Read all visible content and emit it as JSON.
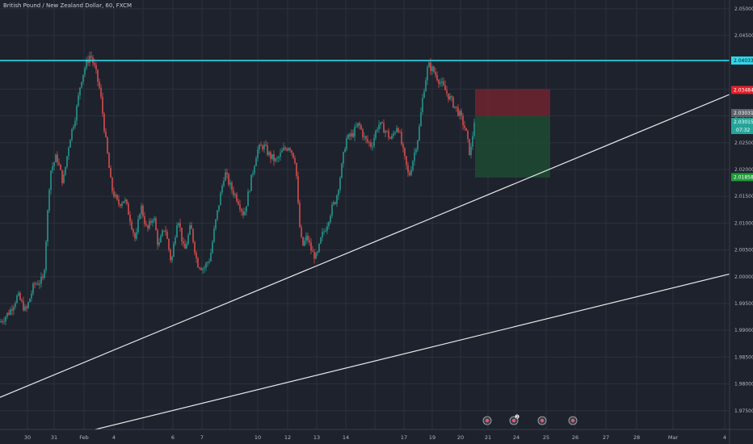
{
  "title": "British Pound / New Zealand Dollar, 60, FXCM",
  "colors": {
    "background": "#1e222d",
    "grid": "#2c303c",
    "up": "#26a69a",
    "down": "#ef5350",
    "resistance": "#30d7e8",
    "trendline": "#e8e8e8",
    "stop_zone": "#7a2430",
    "target_zone": "#1d4a33",
    "tag_resistance": "#30d7e8",
    "tag_stop": "#e0202a",
    "tag_last": "#5e6269",
    "tag_entry": "#26a69a",
    "tag_target": "#1e9c3a"
  },
  "chart_data": {
    "type": "candlestick",
    "y_axis": {
      "range": [
        1.9715,
        2.0515
      ],
      "ticks": [
        "2.05000",
        "2.04500",
        "2.04000",
        "2.03500",
        "2.03000",
        "2.02500",
        "2.02000",
        "2.01500",
        "2.01000",
        "2.00500",
        "2.00000",
        "1.99500",
        "1.99000",
        "1.98500",
        "1.98000",
        "1.97500"
      ]
    },
    "x_axis": {
      "ticks": [
        "30",
        "31",
        "Feb",
        "4",
        "6",
        "7",
        "10",
        "12",
        "13",
        "14",
        "17",
        "19",
        "20",
        "21",
        "24",
        "25",
        "26",
        "27",
        "28",
        "Mar",
        "4"
      ]
    },
    "path_anchors": [
      [
        0,
        1.9915
      ],
      [
        12,
        1.9935
      ],
      [
        22,
        1.9965
      ],
      [
        32,
        1.9935
      ],
      [
        42,
        1.9985
      ],
      [
        54,
        1.9995
      ],
      [
        62,
        2.0195
      ],
      [
        70,
        2.0225
      ],
      [
        78,
        2.0175
      ],
      [
        86,
        2.0255
      ],
      [
        94,
        2.0305
      ],
      [
        100,
        2.0365
      ],
      [
        106,
        2.0395
      ],
      [
        112,
        2.0415
      ],
      [
        118,
        2.0385
      ],
      [
        124,
        2.0345
      ],
      [
        130,
        2.0265
      ],
      [
        138,
        2.0165
      ],
      [
        146,
        2.0135
      ],
      [
        154,
        2.0145
      ],
      [
        160,
        2.0115
      ],
      [
        168,
        2.0065
      ],
      [
        174,
        2.0135
      ],
      [
        182,
        2.0085
      ],
      [
        190,
        2.0115
      ],
      [
        196,
        2.0055
      ],
      [
        204,
        2.0095
      ],
      [
        212,
        2.0025
      ],
      [
        220,
        2.0115
      ],
      [
        228,
        2.0045
      ],
      [
        236,
        2.0095
      ],
      [
        244,
        2.0025
      ],
      [
        252,
        2.0015
      ],
      [
        260,
        2.0035
      ],
      [
        266,
        2.0095
      ],
      [
        272,
        2.0145
      ],
      [
        278,
        2.0195
      ],
      [
        286,
        2.0165
      ],
      [
        294,
        2.0145
      ],
      [
        302,
        2.0115
      ],
      [
        310,
        2.0175
      ],
      [
        318,
        2.0235
      ],
      [
        326,
        2.0245
      ],
      [
        334,
        2.0225
      ],
      [
        342,
        2.0215
      ],
      [
        350,
        2.0235
      ],
      [
        358,
        2.0245
      ],
      [
        366,
        2.0215
      ],
      [
        370,
        2.0105
      ],
      [
        374,
        2.0055
      ],
      [
        380,
        2.0075
      ],
      [
        386,
        2.0045
      ],
      [
        392,
        2.0035
      ],
      [
        398,
        2.0075
      ],
      [
        404,
        2.0095
      ],
      [
        410,
        2.0125
      ],
      [
        416,
        2.0145
      ],
      [
        422,
        2.0195
      ],
      [
        428,
        2.0255
      ],
      [
        436,
        2.0265
      ],
      [
        444,
        2.0285
      ],
      [
        452,
        2.0255
      ],
      [
        460,
        2.0245
      ],
      [
        468,
        2.0285
      ],
      [
        476,
        2.0275
      ],
      [
        484,
        2.0255
      ],
      [
        492,
        2.0285
      ],
      [
        500,
        2.0225
      ],
      [
        506,
        2.0185
      ],
      [
        512,
        2.0225
      ],
      [
        518,
        2.0265
      ],
      [
        524,
        2.0345
      ],
      [
        530,
        2.0395
      ],
      [
        536,
        2.0385
      ],
      [
        544,
        2.0365
      ],
      [
        552,
        2.0345
      ],
      [
        560,
        2.0325
      ],
      [
        568,
        2.0305
      ],
      [
        576,
        2.0275
      ],
      [
        582,
        2.0225
      ],
      [
        588,
        2.0305
      ]
    ],
    "resistance_level": "2.04033",
    "stop_level": "2.03484",
    "last_price": "2.03031",
    "entry_price": "2.03015",
    "countdown": "07:32",
    "target_level": "2.01858",
    "trendlines": [
      {
        "from": [
          "29 Jan",
          1.9775
        ],
        "to": [
          "4 Mar",
          2.034
        ]
      },
      {
        "from": [
          "Feb",
          1.9715
        ],
        "to": [
          "4 Mar",
          2.0005
        ]
      }
    ],
    "trade": {
      "entry": 2.03,
      "stop": 2.035,
      "target": 2.0185
    },
    "event_markers": [
      {
        "day": "21",
        "label": ""
      },
      {
        "day": "23",
        "label": "2"
      },
      {
        "day": "24",
        "label": ""
      },
      {
        "day": "25",
        "label": ""
      }
    ]
  }
}
